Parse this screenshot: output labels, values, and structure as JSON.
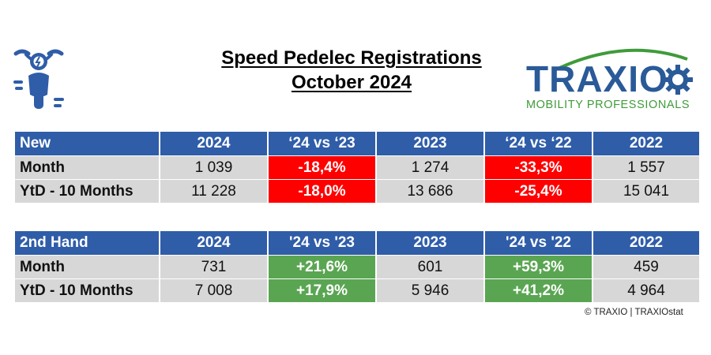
{
  "title": {
    "line1": "Speed Pedelec Registrations",
    "line2": "October 2024"
  },
  "logo": {
    "brand": "TRAXIO",
    "tagline": "MOBILITY PROFESSIONALS",
    "icon": "gear-icon"
  },
  "icons": {
    "vehicle": "speed-pedelec-icon"
  },
  "colors": {
    "header_blue": "#2f5da8",
    "negative_red": "#ff0000",
    "positive_green": "#5aa552",
    "cell_grey": "#d7d7d7",
    "logo_blue": "#2a5a98",
    "logo_green": "#3f9b3a"
  },
  "tables": [
    {
      "headers": [
        "New",
        "2024",
        "‘24 vs ‘23",
        "2023",
        "‘24 vs ‘22",
        "2022"
      ],
      "rows": [
        {
          "label": "Month",
          "v2024": "1 039",
          "vs23": "-18,4%",
          "v2023": "1 274",
          "vs22": "-33,3%",
          "v2022": "1 557"
        },
        {
          "label": "YtD - 10 Months",
          "v2024": "11 228",
          "vs23": "-18,0%",
          "v2023": "13 686",
          "vs22": "-25,4%",
          "v2022": "15 041"
        }
      ]
    },
    {
      "headers": [
        "2nd Hand",
        "2024",
        "'24 vs '23",
        "2023",
        "'24 vs '22",
        "2022"
      ],
      "rows": [
        {
          "label": "Month",
          "v2024": "731",
          "vs23": "+21,6%",
          "v2023": "601",
          "vs22": "+59,3%",
          "v2022": "459"
        },
        {
          "label": "YtD - 10 Months",
          "v2024": "7 008",
          "vs23": "+17,9%",
          "v2023": "5 946",
          "vs22": "+41,2%",
          "v2022": "4 964"
        }
      ]
    }
  ],
  "copyright": "© TRAXIO | TRAXIOstat"
}
